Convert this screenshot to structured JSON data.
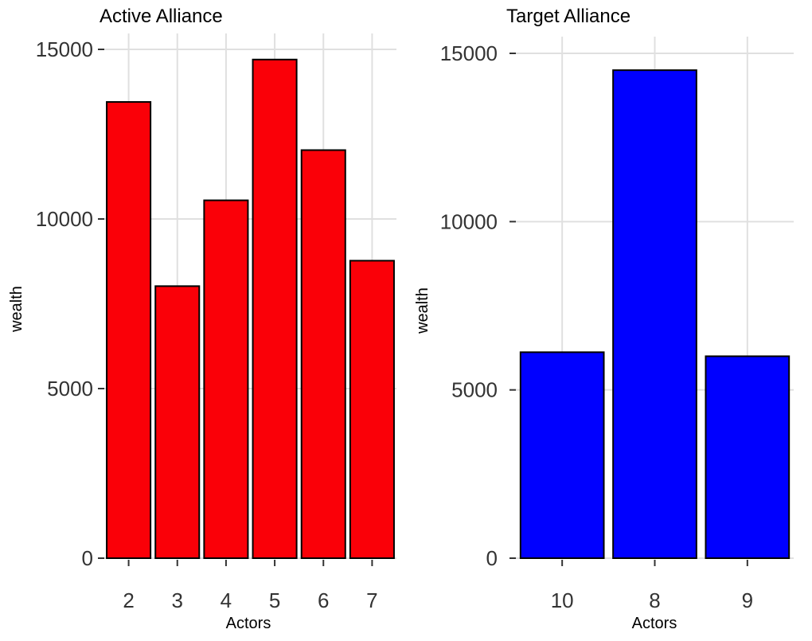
{
  "chart_data": [
    {
      "type": "bar",
      "title": "Active Alliance",
      "xlabel": "Actors",
      "ylabel": "wealth",
      "categories": [
        "2",
        "3",
        "4",
        "5",
        "6",
        "7"
      ],
      "values": [
        13450,
        8020,
        10550,
        14700,
        12030,
        8770
      ],
      "ylim": [
        0,
        15000
      ],
      "yticks": [
        0,
        5000,
        10000,
        15000
      ],
      "ytick_labels": [
        "0",
        "5000",
        "10000",
        "15000"
      ],
      "grid": true,
      "legend": "none",
      "bar_color": "#fa0008"
    },
    {
      "type": "bar",
      "title": "Target Alliance",
      "xlabel": "Actors",
      "ylabel": "wealth",
      "categories": [
        "10",
        "8",
        "9"
      ],
      "values": [
        6120,
        14500,
        6000
      ],
      "ylim": [
        0,
        15000
      ],
      "yticks": [
        0,
        5000,
        10000,
        15000
      ],
      "ytick_labels": [
        "0",
        "5000",
        "10000",
        "15000"
      ],
      "grid": true,
      "legend": "none",
      "bar_color": "#0000ff"
    }
  ]
}
